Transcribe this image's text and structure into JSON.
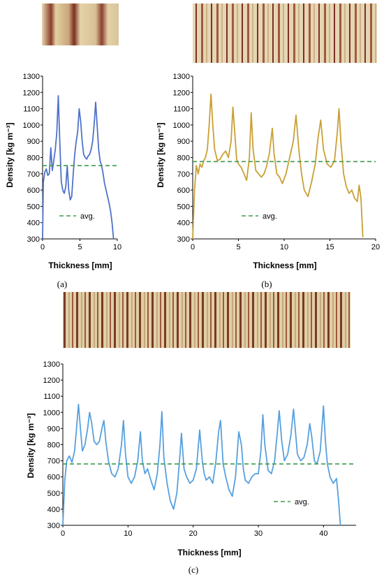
{
  "colors": {
    "line_a": "#4f72c9",
    "line_b": "#c9a034",
    "line_c": "#56a0df",
    "avg": "#3f9a4a",
    "axis": "#000000"
  },
  "chart_data": [
    {
      "type": "line",
      "panel_label": "(a)",
      "xlabel": "Thickness [mm]",
      "ylabel": "Density [kg m⁻³]",
      "xlim": [
        0,
        10
      ],
      "ylim": [
        300,
        1300
      ],
      "xticks": [
        0,
        5,
        10
      ],
      "yticks": [
        300,
        400,
        500,
        600,
        700,
        800,
        900,
        1000,
        1100,
        1200,
        1300
      ],
      "grid": false,
      "legend": {
        "position": "bottom-center",
        "entries": [
          "avg."
        ]
      },
      "series": [
        {
          "style": "solid",
          "color": "#4f72c9",
          "x": [
            0.0,
            0.1,
            0.3,
            0.5,
            0.7,
            0.9,
            1.1,
            1.3,
            1.5,
            1.7,
            1.9,
            2.1,
            2.3,
            2.5,
            2.7,
            2.9,
            3.1,
            3.3,
            3.5,
            3.7,
            3.9,
            4.1,
            4.3,
            4.5,
            4.7,
            4.9,
            5.1,
            5.3,
            5.5,
            5.7,
            5.9,
            6.1,
            6.3,
            6.5,
            6.7,
            6.9,
            7.1,
            7.3,
            7.5,
            7.7,
            7.9,
            8.1,
            8.3,
            8.5,
            8.7,
            8.9,
            9.1,
            9.3,
            9.5
          ],
          "y": [
            300,
            650,
            710,
            730,
            690,
            700,
            860,
            720,
            780,
            850,
            950,
            1180,
            900,
            650,
            600,
            580,
            620,
            750,
            600,
            540,
            560,
            700,
            820,
            900,
            960,
            1100,
            1020,
            900,
            820,
            800,
            790,
            810,
            820,
            850,
            900,
            1000,
            1140,
            1000,
            850,
            780,
            750,
            700,
            640,
            600,
            560,
            520,
            470,
            400,
            300
          ]
        },
        {
          "name": "avg.",
          "style": "dashed",
          "color": "#3f9a4a",
          "x": [
            0,
            10
          ],
          "y": [
            750,
            750
          ]
        }
      ]
    },
    {
      "type": "line",
      "panel_label": "(b)",
      "xlabel": "Thickness [mm]",
      "ylabel": "Density [kg m⁻³]",
      "xlim": [
        0,
        20
      ],
      "ylim": [
        300,
        1300
      ],
      "xticks": [
        0,
        5,
        10,
        15,
        20
      ],
      "yticks": [
        300,
        400,
        500,
        600,
        700,
        800,
        900,
        1000,
        1100,
        1200,
        1300
      ],
      "grid": false,
      "legend": {
        "position": "bottom-left",
        "entries": [
          "avg."
        ]
      },
      "series": [
        {
          "style": "solid",
          "color": "#c9a034",
          "x": [
            0.0,
            0.2,
            0.4,
            0.6,
            0.8,
            1.0,
            1.2,
            1.4,
            1.6,
            1.8,
            2.0,
            2.2,
            2.4,
            2.7,
            3.0,
            3.3,
            3.6,
            3.9,
            4.2,
            4.4,
            4.6,
            4.8,
            5.0,
            5.3,
            5.6,
            5.9,
            6.2,
            6.4,
            6.6,
            6.9,
            7.2,
            7.5,
            7.8,
            8.1,
            8.4,
            8.7,
            8.9,
            9.2,
            9.5,
            9.8,
            10.2,
            10.6,
            11.0,
            11.3,
            11.6,
            11.9,
            12.2,
            12.6,
            13.0,
            13.4,
            13.7,
            14.0,
            14.3,
            14.7,
            15.1,
            15.5,
            15.8,
            16.0,
            16.2,
            16.5,
            16.8,
            17.1,
            17.4,
            17.7,
            18.0,
            18.2,
            18.4,
            18.6
          ],
          "y": [
            300,
            600,
            750,
            700,
            760,
            740,
            780,
            800,
            850,
            1000,
            1190,
            1000,
            850,
            780,
            790,
            820,
            840,
            800,
            900,
            1110,
            950,
            790,
            760,
            740,
            700,
            660,
            800,
            1075,
            850,
            720,
            700,
            680,
            700,
            750,
            830,
            980,
            820,
            700,
            680,
            640,
            700,
            800,
            900,
            1060,
            850,
            700,
            600,
            560,
            650,
            760,
            920,
            1030,
            850,
            760,
            740,
            780,
            950,
            1100,
            900,
            700,
            620,
            580,
            600,
            550,
            530,
            630,
            550,
            310
          ]
        },
        {
          "name": "avg.",
          "style": "dashed",
          "color": "#3f9a4a",
          "x": [
            0,
            20
          ],
          "y": [
            775,
            775
          ]
        }
      ]
    },
    {
      "type": "line",
      "panel_label": "(c)",
      "xlabel": "Thickness [mm]",
      "ylabel": "Density [kg m⁻³]",
      "xlim": [
        0,
        45
      ],
      "ylim": [
        300,
        1300
      ],
      "xticks": [
        0,
        10,
        20,
        30,
        40
      ],
      "yticks": [
        300,
        400,
        500,
        600,
        700,
        800,
        900,
        1000,
        1100,
        1200,
        1300
      ],
      "grid": false,
      "legend": {
        "position": "bottom-right",
        "entries": [
          "avg."
        ]
      },
      "series": [
        {
          "style": "solid",
          "color": "#56a0df",
          "x": [
            0.0,
            0.3,
            0.6,
            1.0,
            1.4,
            1.8,
            2.1,
            2.4,
            2.7,
            3.0,
            3.4,
            3.8,
            4.1,
            4.4,
            4.8,
            5.2,
            5.6,
            6.0,
            6.3,
            6.6,
            7.0,
            7.5,
            8.0,
            8.5,
            9.0,
            9.3,
            9.6,
            10.0,
            10.5,
            11.0,
            11.5,
            11.9,
            12.2,
            12.6,
            13.0,
            13.5,
            14.0,
            14.5,
            14.9,
            15.2,
            15.5,
            16.0,
            16.5,
            17.0,
            17.5,
            17.9,
            18.2,
            18.6,
            19.0,
            19.5,
            20.0,
            20.5,
            21.0,
            21.4,
            21.7,
            22.0,
            22.5,
            23.0,
            23.5,
            23.9,
            24.2,
            24.6,
            25.0,
            25.5,
            26.0,
            26.5,
            27.0,
            27.4,
            27.7,
            28.0,
            28.5,
            29.0,
            29.5,
            30.0,
            30.4,
            30.7,
            31.0,
            31.5,
            32.0,
            32.5,
            32.9,
            33.2,
            33.6,
            34.0,
            34.5,
            35.0,
            35.4,
            35.7,
            36.0,
            36.5,
            37.0,
            37.5,
            37.9,
            38.2,
            38.6,
            39.0,
            39.5,
            40.0,
            40.3,
            40.6,
            41.0,
            41.5,
            42.0,
            42.3,
            42.6
          ],
          "y": [
            300,
            580,
            700,
            730,
            690,
            760,
            900,
            1050,
            900,
            760,
            800,
            900,
            1000,
            940,
            820,
            800,
            820,
            900,
            950,
            820,
            700,
            620,
            600,
            650,
            800,
            950,
            750,
            600,
            560,
            600,
            700,
            880,
            700,
            620,
            650,
            580,
            520,
            620,
            800,
            1005,
            720,
            560,
            450,
            400,
            500,
            700,
            870,
            650,
            600,
            560,
            580,
            650,
            890,
            700,
            620,
            580,
            600,
            560,
            700,
            880,
            950,
            680,
            600,
            520,
            480,
            600,
            880,
            800,
            650,
            580,
            560,
            600,
            620,
            620,
            760,
            985,
            800,
            640,
            620,
            700,
            870,
            1010,
            820,
            700,
            740,
            860,
            1020,
            880,
            740,
            700,
            720,
            800,
            930,
            850,
            700,
            680,
            760,
            1040,
            820,
            680,
            600,
            560,
            590,
            460,
            300
          ]
        },
        {
          "name": "avg.",
          "style": "dashed",
          "color": "#3f9a4a",
          "x": [
            0,
            45
          ],
          "y": [
            680,
            680
          ]
        }
      ]
    }
  ]
}
